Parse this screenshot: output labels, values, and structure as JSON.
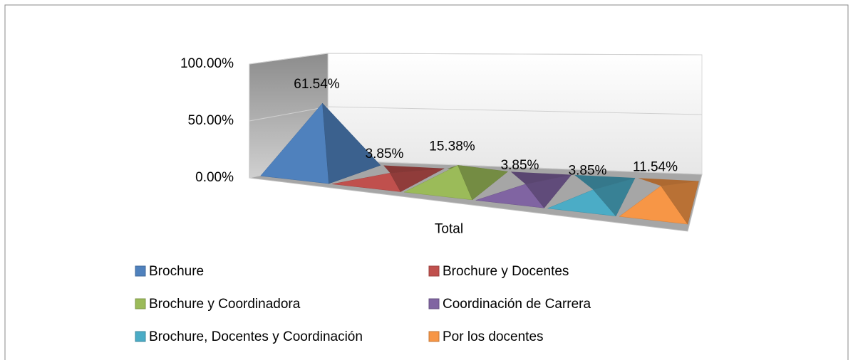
{
  "chart_data": {
    "type": "pyramid",
    "categories": [
      "Total"
    ],
    "series": [
      {
        "name": "Brochure",
        "color": "#4f81bd",
        "values": [
          61.54
        ],
        "value_labels": [
          "61.54%"
        ]
      },
      {
        "name": "Brochure y Docentes",
        "color": "#c0504d",
        "values": [
          3.85
        ],
        "value_labels": [
          "3.85%"
        ]
      },
      {
        "name": "Brochure y Coordinadora",
        "color": "#9bbb59",
        "values": [
          15.38
        ],
        "value_labels": [
          "15.38%"
        ]
      },
      {
        "name": "Coordinación de Carrera",
        "color": "#8064a2",
        "values": [
          3.85
        ],
        "value_labels": [
          "3.85%"
        ]
      },
      {
        "name": "Brochure, Docentes y Coordinación",
        "color": "#4bacc6",
        "values": [
          3.85
        ],
        "value_labels": [
          "3.85%"
        ]
      },
      {
        "name": "Por los docentes",
        "color": "#f79646",
        "values": [
          11.54
        ],
        "value_labels": [
          "11.54%"
        ]
      }
    ],
    "ylim": [
      0,
      100
    ],
    "yticks": [
      {
        "value": 0,
        "label": "0.00%"
      },
      {
        "value": 50,
        "label": "50.00%"
      },
      {
        "value": 100,
        "label": "100.00%"
      }
    ],
    "grid": true,
    "legend": "bottom"
  }
}
